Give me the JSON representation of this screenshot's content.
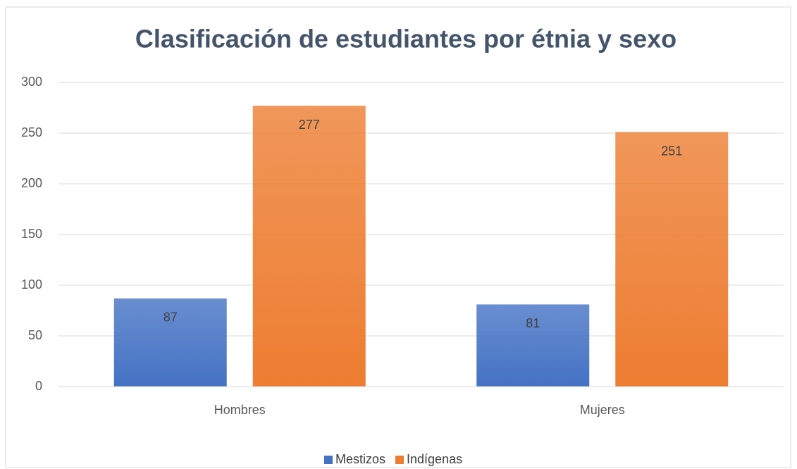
{
  "chart_data": {
    "type": "bar",
    "title": "Clasificación de estudiantes por étnia y sexo",
    "categories": [
      "Hombres",
      "Mujeres"
    ],
    "series": [
      {
        "name": "Mestizos",
        "color": "#4472c4",
        "values": [
          87,
          81
        ]
      },
      {
        "name": "Indígenas",
        "color": "#ed7d31",
        "values": [
          277,
          251
        ]
      }
    ],
    "ylim": [
      0,
      300
    ],
    "yticks": [
      0,
      50,
      100,
      150,
      200,
      250,
      300
    ],
    "grid": true,
    "legend": "bottom"
  }
}
